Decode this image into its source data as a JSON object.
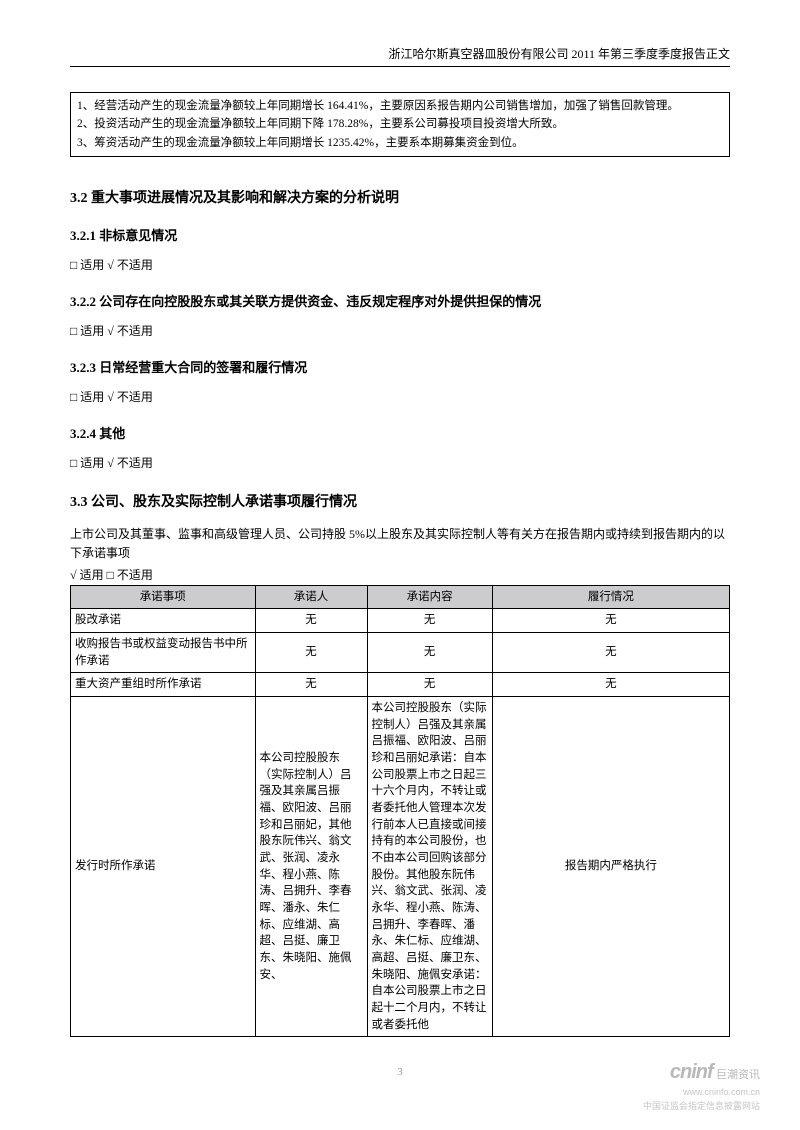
{
  "header": "浙江哈尔斯真空器皿股份有限公司  2011 年第三季度季度报告正文",
  "box": {
    "l1": "1、经营活动产生的现金流量净额较上年同期增长  164.41%，主要原因系报告期内公司销售增加，加强了销售回款管理。",
    "l2": "2、投资活动产生的现金流量净额较上年同期下降  178.28%，主要系公司募投项目投资增大所致。",
    "l3": "3、筹资活动产生的现金流量净额较上年同期增长  1235.42%，主要系本期募集资金到位。"
  },
  "s32": "3.2 重大事项进展情况及其影响和解决方案的分析说明",
  "s321": "3.2.1 非标意见情况",
  "s322": "3.2.2 公司存在向控股股东或其关联方提供资金、违反规定程序对外提供担保的情况",
  "s323": "3.2.3 日常经营重大合同的签署和履行情况",
  "s324": "3.2.4 其他",
  "s33": "3.3 公司、股东及实际控制人承诺事项履行情况",
  "applicable_na": "□ 适用  √ 不适用",
  "applicable_yes": "√ 适用 □  不适用",
  "para33": "上市公司及其董事、监事和高级管理人员、公司持股  5%以上股东及其实际控制人等有关方在报告期内或持续到报告期内的以下承诺事项",
  "thead": {
    "c1": "承诺事项",
    "c2": "承诺人",
    "c3": "承诺内容",
    "c4": "履行情况"
  },
  "rows": {
    "r1c1": "股改承诺",
    "r2c1": "收购报告书或权益变动报告书中所作承诺",
    "r3c1": "重大资产重组时所作承诺",
    "none": "无",
    "r4c1": "发行时所作承诺",
    "r4c2": "本公司控股股东（实际控制人）吕强及其亲属吕振福、欧阳波、吕丽珍和吕丽妃，其他股东阮伟兴、翁文武、张润、凌永华、程小燕、陈涛、吕拥升、李春晖、潘永、朱仁标、应维湖、高超、吕挺、廉卫东、朱晓阳、施佩安、",
    "r4c3": "本公司控股股东（实际控制人）吕强及其亲属吕振福、欧阳波、吕丽珍和吕丽妃承诺：自本公司股票上市之日起三十六个月内，不转让或者委托他人管理本次发行前本人已直接或间接持有的本公司股份，也不由本公司回购该部分股份。其他股东阮伟兴、翁文武、张润、凌永华、程小燕、陈涛、吕拥升、李春晖、潘永、朱仁标、应维湖、高超、吕挺、廉卫东、朱晓阳、施佩安承诺：自本公司股票上市之日起十二个月内，不转让或者委托他",
    "r4c4": "报告期内严格执行"
  },
  "pagenum": "3",
  "watermark": {
    "logo": "cninf",
    "cn": "巨潮资讯",
    "url": "www.cninfo.com.cn",
    "sub": "中国证监会指定信息披露网站"
  }
}
